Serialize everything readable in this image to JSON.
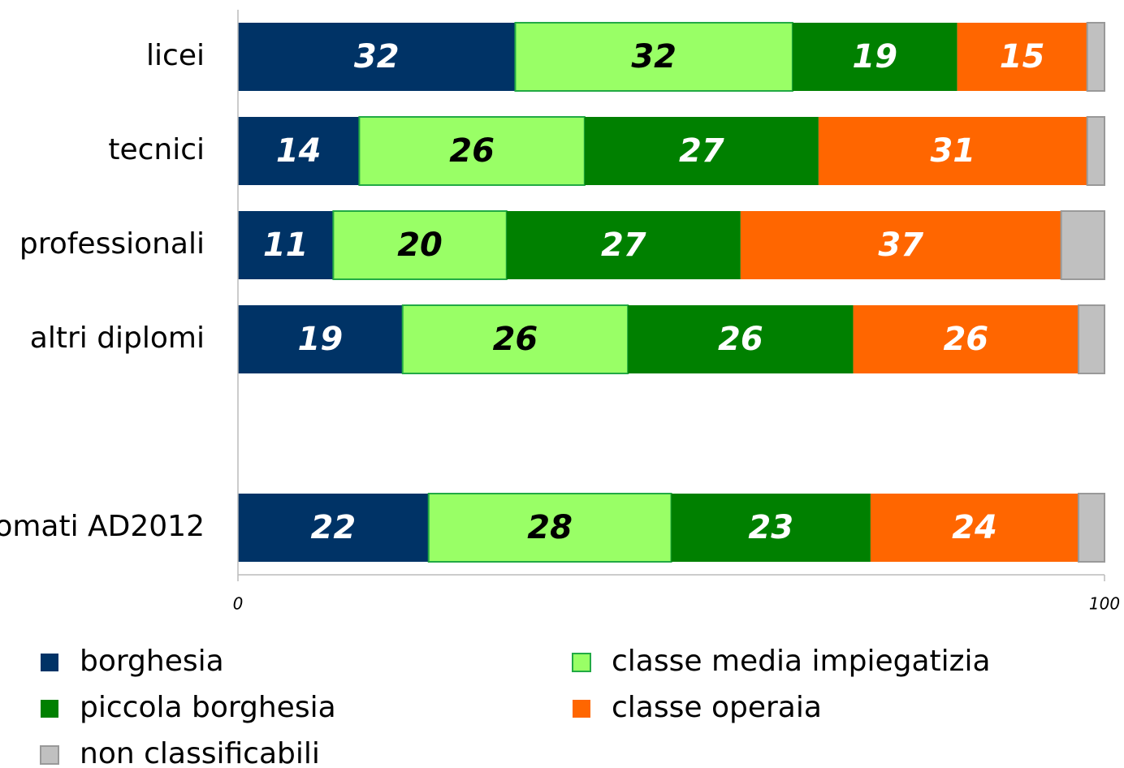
{
  "chart_data": {
    "type": "stacked_bar_horizontal",
    "categories": [
      "licei",
      "tecnici",
      "professionali",
      "altri diplomi",
      null,
      "omati AD2012"
    ],
    "series": [
      {
        "name": "borghesia",
        "color": "#003366",
        "label_color": "#ffffff",
        "show_labels": true,
        "values": [
          32,
          14,
          11,
          19,
          null,
          22
        ]
      },
      {
        "name": "classe media impiegatizia",
        "color": "#99ff66",
        "label_color": "#000000",
        "show_labels": true,
        "values": [
          32,
          26,
          20,
          26,
          null,
          28
        ]
      },
      {
        "name": "piccola borghesia",
        "color": "#008000",
        "label_color": "#ffffff",
        "show_labels": true,
        "values": [
          19,
          27,
          27,
          26,
          null,
          23
        ]
      },
      {
        "name": "classe operaia",
        "color": "#ff6600",
        "label_color": "#ffffff",
        "show_labels": true,
        "values": [
          15,
          31,
          37,
          26,
          null,
          24
        ]
      },
      {
        "name": "non classificabili",
        "color": "#c0c0c0",
        "label_color": "#000000",
        "show_labels": false,
        "values": [
          2,
          2,
          5,
          3,
          null,
          3
        ]
      }
    ],
    "xlim": [
      0,
      100
    ],
    "xticks": [
      0,
      100
    ],
    "legend": "bottom"
  }
}
